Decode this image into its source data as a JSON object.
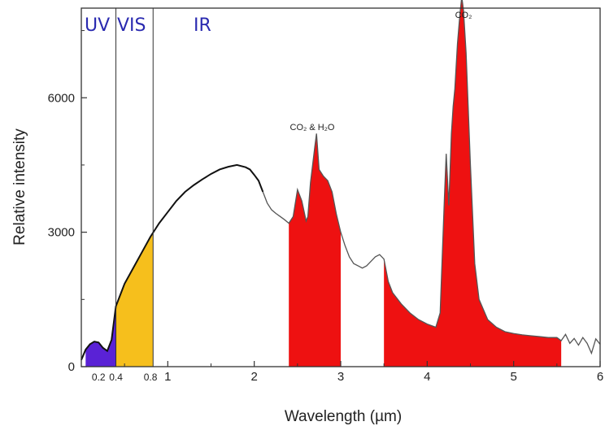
{
  "chart_data": {
    "type": "area",
    "xlabel": "Wavelength (µm)",
    "ylabel": "Relative intensity",
    "xlim": [
      0,
      6
    ],
    "ylim": [
      0,
      8000
    ],
    "x_ticks": [
      1,
      2,
      3,
      4,
      5,
      6
    ],
    "x_small_ticks": [
      0.2,
      0.4,
      0.8
    ],
    "y_ticks": [
      0,
      3000,
      6000
    ],
    "bands": [
      {
        "label": "UV",
        "from": 0.0,
        "to": 0.4
      },
      {
        "label": "VIS",
        "from": 0.4,
        "to": 0.8
      },
      {
        "label": "IR",
        "from": 0.8,
        "to": 6.0
      }
    ],
    "band_dividers": [
      0.4,
      0.83
    ],
    "annotations": [
      {
        "text": "CO₂ & H₂O",
        "x": 2.72,
        "y": 5700
      },
      {
        "text": "CO₂",
        "x": 4.42,
        "y": 8250
      }
    ],
    "series": [
      {
        "x": [
          0.0,
          0.05,
          0.1,
          0.15,
          0.2,
          0.25,
          0.3,
          0.35,
          0.4,
          0.5,
          0.6,
          0.7,
          0.8,
          0.9,
          1.0,
          1.1,
          1.2,
          1.3,
          1.4,
          1.5,
          1.6,
          1.7,
          1.8,
          1.9,
          1.95,
          2.0,
          2.05,
          2.1,
          2.15,
          2.2,
          2.25,
          2.3,
          2.35,
          2.4,
          2.45,
          2.5,
          2.55,
          2.6,
          2.62,
          2.65,
          2.7,
          2.72,
          2.75,
          2.8,
          2.85,
          2.9,
          2.95,
          3.0,
          3.05,
          3.1,
          3.15,
          3.2,
          3.25,
          3.3,
          3.35,
          3.4,
          3.45,
          3.5,
          3.55,
          3.6,
          3.7,
          3.8,
          3.9,
          4.0,
          4.1,
          4.15,
          4.2,
          4.22,
          4.25,
          4.28,
          4.3,
          4.32,
          4.35,
          4.38,
          4.4,
          4.42,
          4.45,
          4.5,
          4.55,
          4.6,
          4.7,
          4.8,
          4.9,
          5.0,
          5.1,
          5.2,
          5.3,
          5.4,
          5.5,
          5.55,
          5.6,
          5.65,
          5.7,
          5.75,
          5.8,
          5.85,
          5.9,
          5.95,
          6.0
        ],
        "values": [
          150,
          380,
          500,
          560,
          540,
          420,
          350,
          600,
          1350,
          1850,
          2200,
          2550,
          2900,
          3200,
          3450,
          3700,
          3900,
          4050,
          4180,
          4300,
          4400,
          4460,
          4500,
          4450,
          4400,
          4280,
          4150,
          3900,
          3650,
          3500,
          3420,
          3350,
          3280,
          3200,
          3350,
          3950,
          3700,
          3250,
          3350,
          4100,
          4900,
          5200,
          4400,
          4250,
          4150,
          3900,
          3400,
          3000,
          2700,
          2450,
          2300,
          2250,
          2200,
          2250,
          2350,
          2450,
          2500,
          2400,
          1900,
          1650,
          1400,
          1200,
          1050,
          950,
          880,
          1200,
          3800,
          4750,
          3600,
          5200,
          5800,
          6200,
          7200,
          7900,
          8250,
          7950,
          7000,
          4500,
          2300,
          1500,
          1050,
          880,
          780,
          740,
          710,
          690,
          670,
          650,
          650,
          580,
          720,
          520,
          630,
          480,
          650,
          520,
          300,
          620,
          500
        ]
      }
    ],
    "fills": [
      {
        "from": 0.05,
        "to": 0.4,
        "color": "#5a22d6"
      },
      {
        "from": 0.4,
        "to": 0.83,
        "color": "#f6bf1c"
      },
      {
        "from": 2.4,
        "to": 3.0,
        "color": "#ee1111"
      },
      {
        "from": 3.5,
        "to": 5.55,
        "color": "#ee1111"
      }
    ],
    "colors": {
      "curve": "#111111",
      "curve_tail": "#555555",
      "band_label": "#2a2ab0"
    }
  }
}
